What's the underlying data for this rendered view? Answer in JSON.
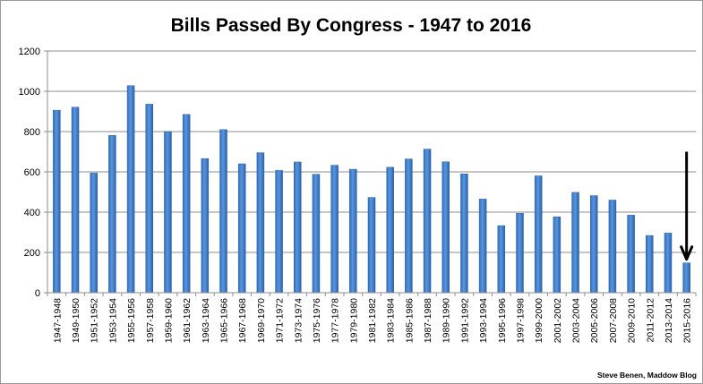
{
  "chart_data": {
    "type": "bar",
    "title": "Bills Passed By Congress - 1947 to 2016",
    "credit": "Steve Benen, Maddow Blog",
    "categories": [
      "1947-1948",
      "1949-1950",
      "1951-1952",
      "1953-1954",
      "1955-1956",
      "1957-1958",
      "1959-1960",
      "1961-1962",
      "1963-1964",
      "1965-1966",
      "1967-1968",
      "1969-1970",
      "1971-1972",
      "1973-1974",
      "1975-1976",
      "1977-1978",
      "1979-1980",
      "1981-1982",
      "1983-1984",
      "1985-1986",
      "1987-1988",
      "1989-1990",
      "1991-1992",
      "1993-1994",
      "1995-1996",
      "1997-1998",
      "1999-2000",
      "2001-2002",
      "2003-2004",
      "2005-2006",
      "2007-2008",
      "2009-2010",
      "2011-2012",
      "2013-2014",
      "2015-2016"
    ],
    "values": [
      906,
      921,
      594,
      781,
      1028,
      936,
      800,
      885,
      666,
      810,
      640,
      695,
      607,
      649,
      588,
      633,
      613,
      473,
      623,
      664,
      713,
      650,
      590,
      465,
      333,
      394,
      580,
      377,
      498,
      482,
      460,
      385,
      284,
      296,
      148
    ],
    "ylim": [
      0,
      1200
    ],
    "yticks": [
      0,
      200,
      400,
      600,
      800,
      1000,
      1200
    ],
    "grid": true,
    "legend": "none",
    "annotation": "downward arrow pointing at 2015-2016 bar",
    "colors": {
      "bar": "#3f7fcf",
      "bar_edge": "#2b5fa6",
      "grid": "#8c8c8c",
      "arrow": "#000000"
    }
  }
}
